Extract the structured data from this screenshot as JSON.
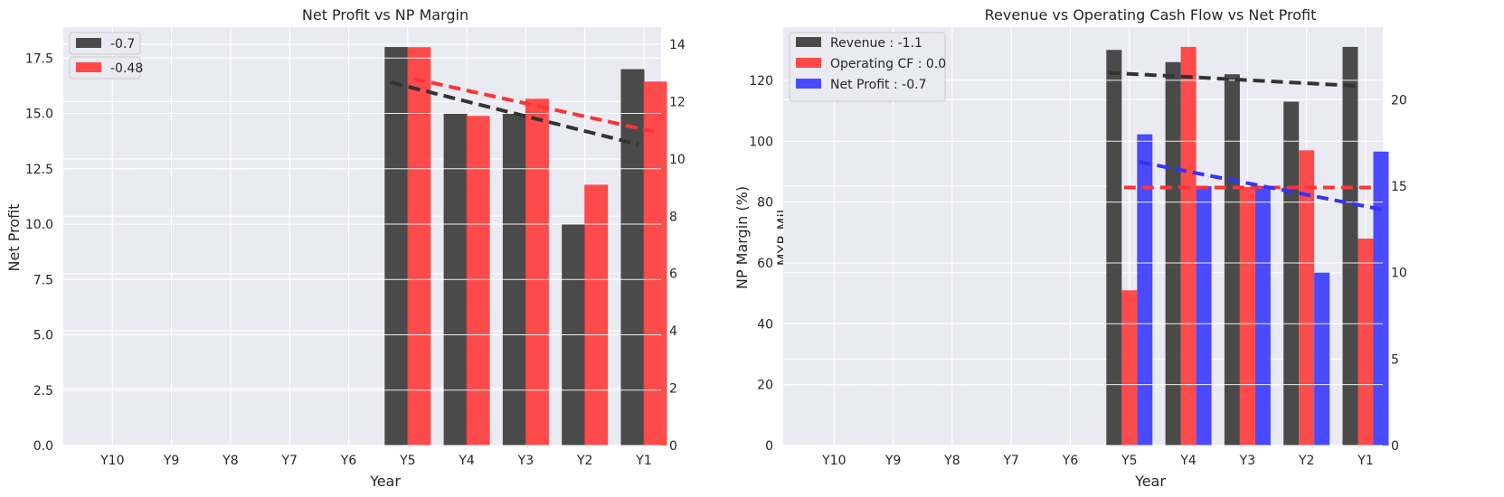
{
  "colors": {
    "background": "#eaeaf2",
    "grid": "#ffffff",
    "black_series": "#333333",
    "red_series": "#ff3333",
    "blue_series": "#3333ff"
  },
  "chart_data": [
    {
      "type": "bar",
      "title": "Net Profit vs NP Margin",
      "xlabel": "Year",
      "ylabel": "Net Profit",
      "ylabel_right": "NP Margin (%)",
      "categories": [
        "Y10",
        "Y9",
        "Y8",
        "Y7",
        "Y6",
        "Y5",
        "Y4",
        "Y3",
        "Y2",
        "Y1"
      ],
      "ylim": [
        0,
        18.9
      ],
      "ylim_right": [
        0,
        14.6
      ],
      "yticks": [
        "0.0",
        "2.5",
        "5.0",
        "7.5",
        "10.0",
        "12.5",
        "15.0",
        "17.5"
      ],
      "yticks_right": [
        "0",
        "2",
        "4",
        "6",
        "8",
        "10",
        "12",
        "14"
      ],
      "grid": true,
      "legend_position": "top-left",
      "series": [
        {
          "name": "-0.7",
          "axis": "left",
          "color": "black",
          "values": [
            null,
            null,
            null,
            null,
            null,
            18.0,
            15.0,
            15.0,
            10.0,
            17.0
          ]
        },
        {
          "name": "-0.48",
          "axis": "right",
          "color": "red",
          "values": [
            null,
            null,
            null,
            null,
            null,
            13.9,
            11.5,
            12.1,
            9.1,
            12.7
          ]
        }
      ],
      "trendlines": [
        {
          "series": "-0.7",
          "color": "black",
          "from": {
            "x": "Y5",
            "y": 16.4
          },
          "to": {
            "x": "Y1",
            "y": 13.6
          }
        },
        {
          "series": "-0.48",
          "color": "red",
          "from": {
            "x": "Y5",
            "y": 12.8
          },
          "to": {
            "x": "Y1",
            "y": 10.9
          }
        }
      ]
    },
    {
      "type": "bar",
      "title": "Revenue vs Operating Cash Flow vs Net Profit",
      "xlabel": "Year",
      "ylabel": "MYR Mil",
      "categories": [
        "Y10",
        "Y9",
        "Y8",
        "Y7",
        "Y6",
        "Y5",
        "Y4",
        "Y3",
        "Y2",
        "Y1"
      ],
      "ylim": [
        0,
        137.5
      ],
      "ylim_right": [
        0,
        24.2
      ],
      "yticks": [
        "0",
        "20",
        "40",
        "60",
        "80",
        "100",
        "120"
      ],
      "yticks_right": [
        "0",
        "5",
        "10",
        "15",
        "20"
      ],
      "grid": true,
      "legend_position": "top-left",
      "series": [
        {
          "name": "Revenue : -1.1",
          "axis": "left",
          "color": "black",
          "values": [
            null,
            null,
            null,
            null,
            null,
            130,
            126,
            122,
            113,
            131
          ]
        },
        {
          "name": "Operating CF : 0.0",
          "axis": "left",
          "color": "red",
          "values": [
            null,
            null,
            null,
            null,
            null,
            51,
            131,
            85,
            97,
            68
          ]
        },
        {
          "name": "Net Profit : -0.7",
          "axis": "right",
          "color": "blue",
          "values": [
            null,
            null,
            null,
            null,
            null,
            18,
            15,
            15,
            10,
            17
          ]
        }
      ],
      "trendlines": [
        {
          "series": "Revenue : -1.1",
          "color": "black",
          "from": {
            "x": "Y5",
            "y": 122.5
          },
          "to": {
            "x": "Y1",
            "y": 118.2
          }
        },
        {
          "series": "Operating CF : 0.0",
          "color": "red",
          "from": {
            "x": "Y5",
            "y": 84.8
          },
          "to": {
            "x": "Y1",
            "y": 84.8
          }
        },
        {
          "series": "Net Profit : -0.7",
          "color": "blue",
          "from": {
            "x": "Y5",
            "y": 16.4
          },
          "to": {
            "x": "Y1",
            "y": 13.6
          }
        }
      ]
    }
  ]
}
